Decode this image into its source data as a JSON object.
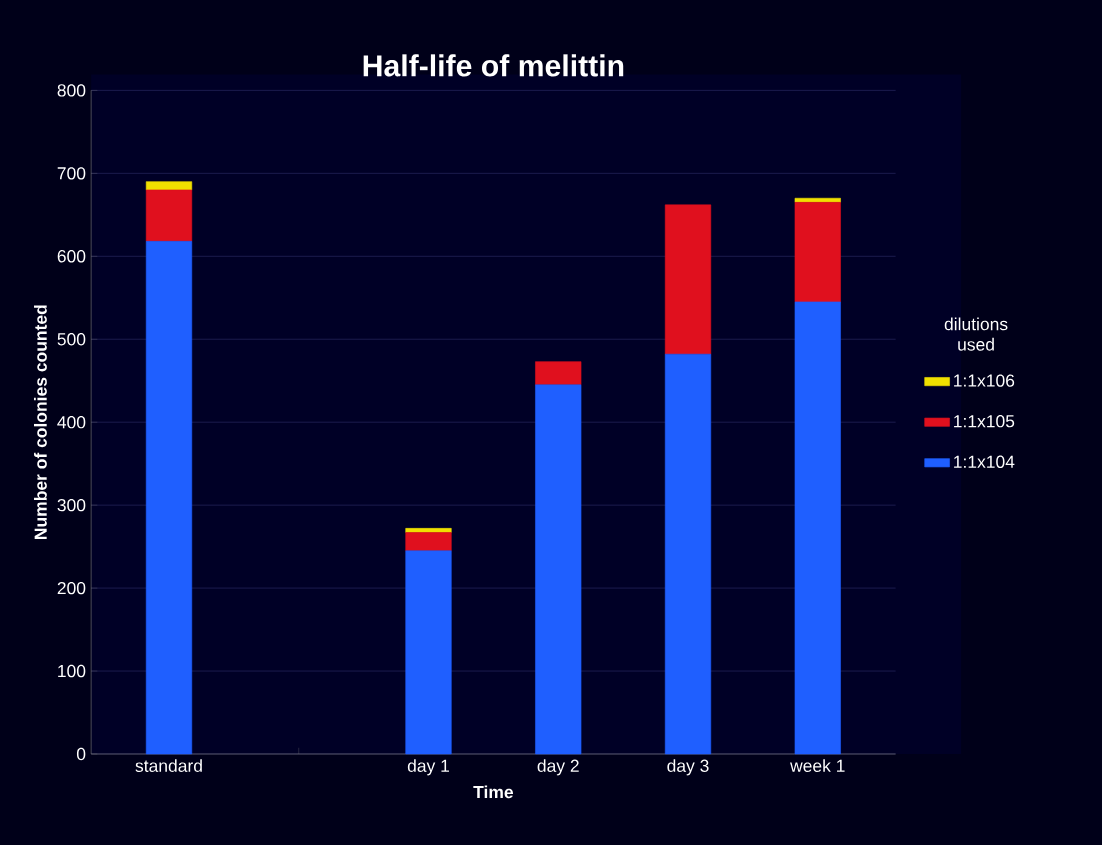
{
  "chart_data": {
    "type": "bar",
    "title": "Half-life of melittin",
    "xlabel": "Time",
    "ylabel": "Number of colonies counted",
    "legend_title": "dilutions used",
    "categories": [
      "standard",
      null,
      "day 1",
      "day 2",
      "day 3",
      "week 1"
    ],
    "stacked": true,
    "ylim": [
      0,
      800
    ],
    "yticks": [
      0,
      100,
      200,
      300,
      400,
      500,
      600,
      700,
      800
    ],
    "grid": "y",
    "legend": "right",
    "series": [
      {
        "name": "1:1x104",
        "color": "#1f5fff",
        "values": [
          618,
          null,
          245,
          445,
          482,
          545
        ]
      },
      {
        "name": "1:1x105",
        "color": "#e0101e",
        "values": [
          62,
          null,
          22,
          28,
          180,
          120
        ]
      },
      {
        "name": "1:1x106",
        "color": "#f0e000",
        "values": [
          10,
          null,
          5,
          0,
          0,
          5
        ]
      }
    ]
  }
}
